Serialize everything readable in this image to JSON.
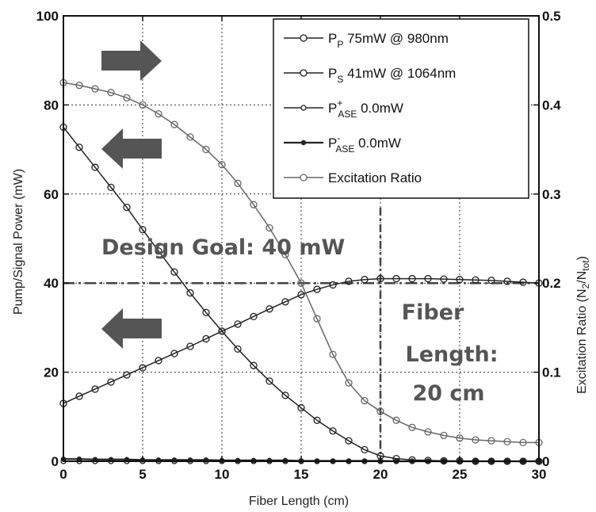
{
  "chart_data": {
    "type": "line",
    "xlabel": "Fiber Length (cm)",
    "ylabel_left": "Pump/Signal Power (mW)",
    "ylabel_right_main": "Excitation Ratio (N",
    "ylabel_right_sub1": "2",
    "ylabel_right_mid": "/N",
    "ylabel_right_sub2": "tot",
    "ylabel_right_end": ")",
    "xlim": [
      0,
      30
    ],
    "ylim_left": [
      0,
      100
    ],
    "ylim_right": [
      0,
      0.5
    ],
    "x_ticks": [
      "0",
      "5",
      "10",
      "15",
      "20",
      "25",
      "30"
    ],
    "y_ticks_left": [
      "0",
      "20",
      "40",
      "60",
      "80",
      "100"
    ],
    "y_ticks_right": [
      "0",
      "0.1",
      "0.2",
      "0.3",
      "0.4",
      "0.5"
    ],
    "grid": true,
    "legend_position": "top-right",
    "x": [
      0,
      1,
      2,
      3,
      4,
      5,
      6,
      7,
      8,
      9,
      10,
      11,
      12,
      13,
      14,
      15,
      16,
      17,
      18,
      19,
      20,
      21,
      22,
      23,
      24,
      25,
      26,
      27,
      28,
      29,
      30
    ],
    "series": [
      {
        "legend": {
          "main": "P",
          "sub": "P",
          "sup": "",
          "rest": " 75mW @ 980nm"
        },
        "axis": "left",
        "marker": "circle",
        "values": [
          75,
          70.5,
          66,
          61.5,
          57,
          52,
          47.2,
          42.5,
          37.8,
          33.4,
          29.2,
          25.2,
          21.5,
          18,
          14.8,
          12,
          9.2,
          6.8,
          4.6,
          2.6,
          1.2,
          0.6,
          0.3,
          0.2,
          0.1,
          0.1,
          0,
          0,
          0,
          0,
          0
        ]
      },
      {
        "legend": {
          "main": "P",
          "sub": "S",
          "sup": "",
          "rest": " 41mW @ 1064nm"
        },
        "axis": "left",
        "marker": "circle",
        "values": [
          13,
          14.6,
          16.2,
          17.8,
          19.4,
          21,
          22.6,
          24.2,
          25.8,
          27.5,
          29.2,
          30.8,
          32.5,
          34.2,
          35.8,
          37.4,
          38.6,
          39.6,
          40.4,
          40.8,
          41,
          41,
          41,
          41,
          40.9,
          40.8,
          40.7,
          40.6,
          40.4,
          40.2,
          40
        ]
      },
      {
        "legend": {
          "main": "P",
          "sub": "ASE",
          "sup": "+",
          "rest": " 0.0mW"
        },
        "axis": "left",
        "marker": "circle-small",
        "values": [
          0,
          0,
          0,
          0,
          0,
          0,
          0,
          0,
          0,
          0,
          0,
          0,
          0,
          0,
          0,
          0,
          0,
          0,
          0,
          0,
          0,
          0,
          0,
          0,
          0,
          0,
          0,
          0,
          0,
          0,
          0
        ]
      },
      {
        "legend": {
          "main": "P",
          "sub": "ASE",
          "sup": "-",
          "rest": " 0.0mW"
        },
        "axis": "left",
        "marker": "dot",
        "values": [
          0.5,
          0.5,
          0.4,
          0.4,
          0.4,
          0.3,
          0.3,
          0.3,
          0.3,
          0.3,
          0.2,
          0.2,
          0.2,
          0.2,
          0.2,
          0.1,
          0.1,
          0.1,
          0.1,
          0.1,
          0.1,
          0,
          0,
          0,
          0,
          0,
          0,
          0,
          0,
          0,
          0
        ]
      },
      {
        "legend": {
          "main": "Excitation Ratio",
          "sub": "",
          "sup": "",
          "rest": ""
        },
        "axis": "right",
        "marker": "circle",
        "values": [
          0.425,
          0.422,
          0.418,
          0.414,
          0.408,
          0.4,
          0.39,
          0.378,
          0.364,
          0.35,
          0.333,
          0.312,
          0.288,
          0.262,
          0.232,
          0.2,
          0.16,
          0.12,
          0.088,
          0.068,
          0.056,
          0.046,
          0.038,
          0.033,
          0.029,
          0.026,
          0.024,
          0.023,
          0.022,
          0.021,
          0.021
        ]
      }
    ],
    "reference_line": {
      "y": 40,
      "axis": "left"
    },
    "reference_vline": {
      "x": 20
    },
    "annotations": {
      "design_goal": "Design Goal: 40 mW",
      "fiber_length_1": "Fiber",
      "fiber_length_2": "Length:",
      "fiber_length_3": "20 cm"
    }
  },
  "colors": {
    "line_dark": "#222222",
    "line_gray": "#666666",
    "arrow": "#555555",
    "annotation": "#555555",
    "grid": "#333333"
  }
}
